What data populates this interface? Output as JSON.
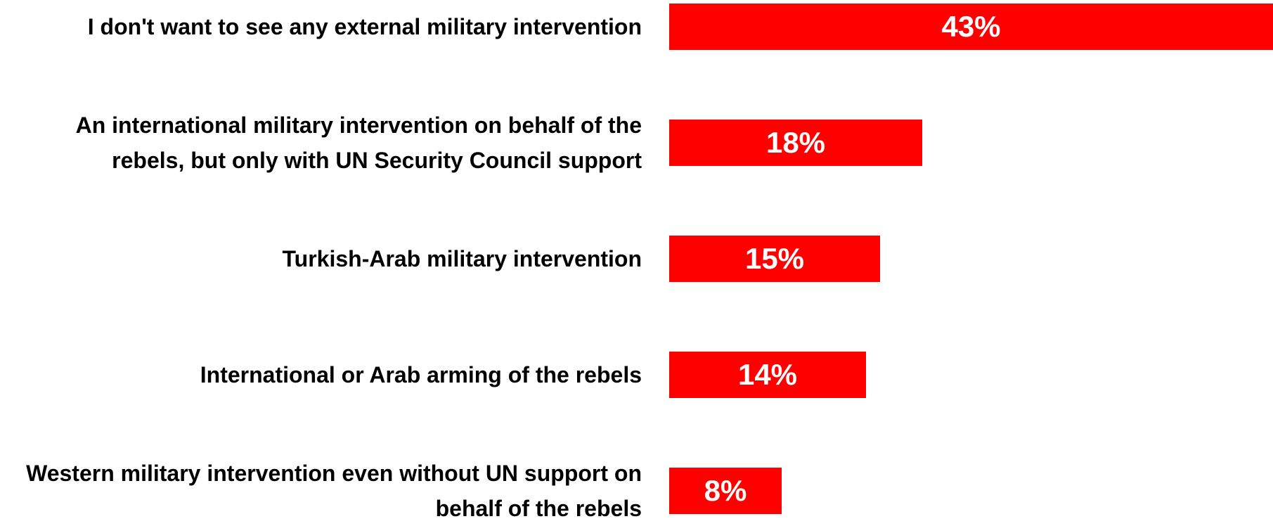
{
  "chart_data": {
    "type": "bar",
    "orientation": "horizontal",
    "title": "",
    "xlabel": "",
    "ylabel": "",
    "grid": false,
    "legend": "none",
    "bar_color": "#ff0000",
    "label_color": "#ffffff",
    "xlim": [
      0,
      43
    ],
    "categories": [
      "I don't want to see any external military intervention",
      "An international military intervention on behalf of the rebels, but only with UN Security Council support",
      "Turkish-Arab military intervention",
      "International or Arab arming of the rebels",
      "Western military intervention even without UN support on behalf of the rebels"
    ],
    "values": [
      43,
      18,
      15,
      14,
      8
    ],
    "data_labels": [
      "43%",
      "18%",
      "15%",
      "14%",
      "8%"
    ]
  }
}
